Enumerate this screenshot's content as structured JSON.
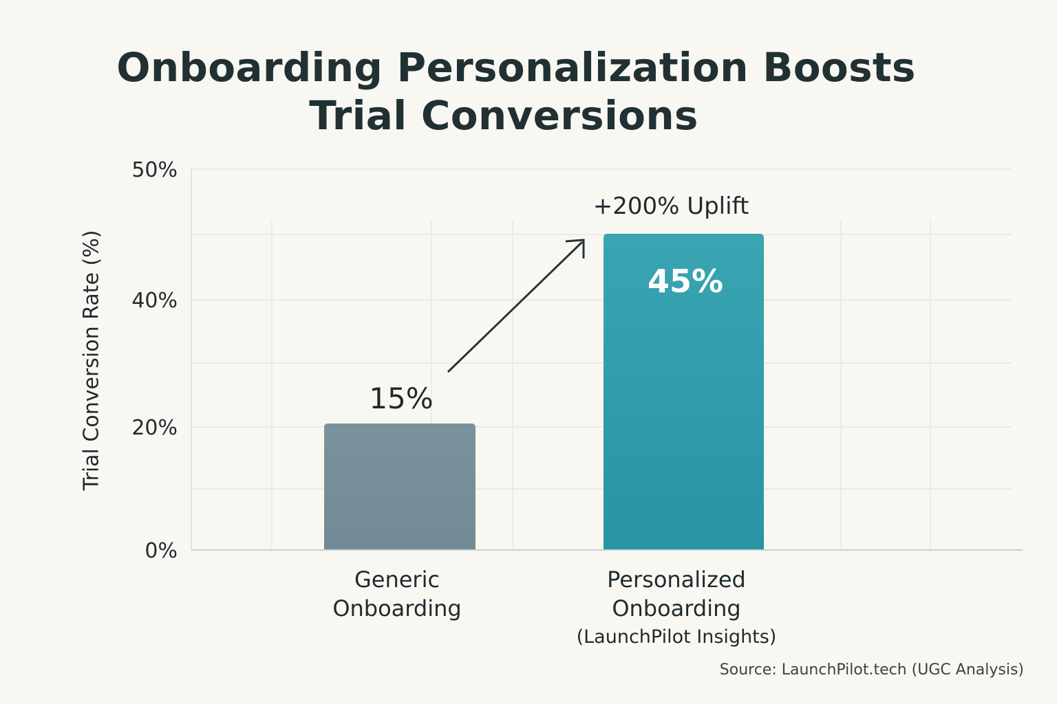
{
  "chart_data": {
    "type": "bar",
    "title_lines": [
      "Onboarding Personalization Boosts",
      "Trial Conversions"
    ],
    "ylabel": "Trial Conversion Rate (%)",
    "xlabel": "",
    "ylim": [
      0,
      50
    ],
    "y_ticks": [
      {
        "value": 0,
        "label": "0%"
      },
      {
        "value": 20,
        "label": "20%"
      },
      {
        "value": 40,
        "label": "40%"
      },
      {
        "value": 50,
        "label": "50%"
      }
    ],
    "categories": [
      {
        "lines": [
          "Generic",
          "Onboarding"
        ],
        "sub": ""
      },
      {
        "lines": [
          "Personalized",
          "Onboarding"
        ],
        "sub": "(LaunchPilot Insights)"
      }
    ],
    "values": [
      15,
      45
    ],
    "value_labels": [
      "15%",
      "45%"
    ],
    "bar_colors": [
      "#788f9a",
      "#2b9aaa"
    ],
    "annotation": "+200% Uplift",
    "grid": true,
    "source": "Source: LaunchPilot.tech (UGC Analysis)"
  }
}
